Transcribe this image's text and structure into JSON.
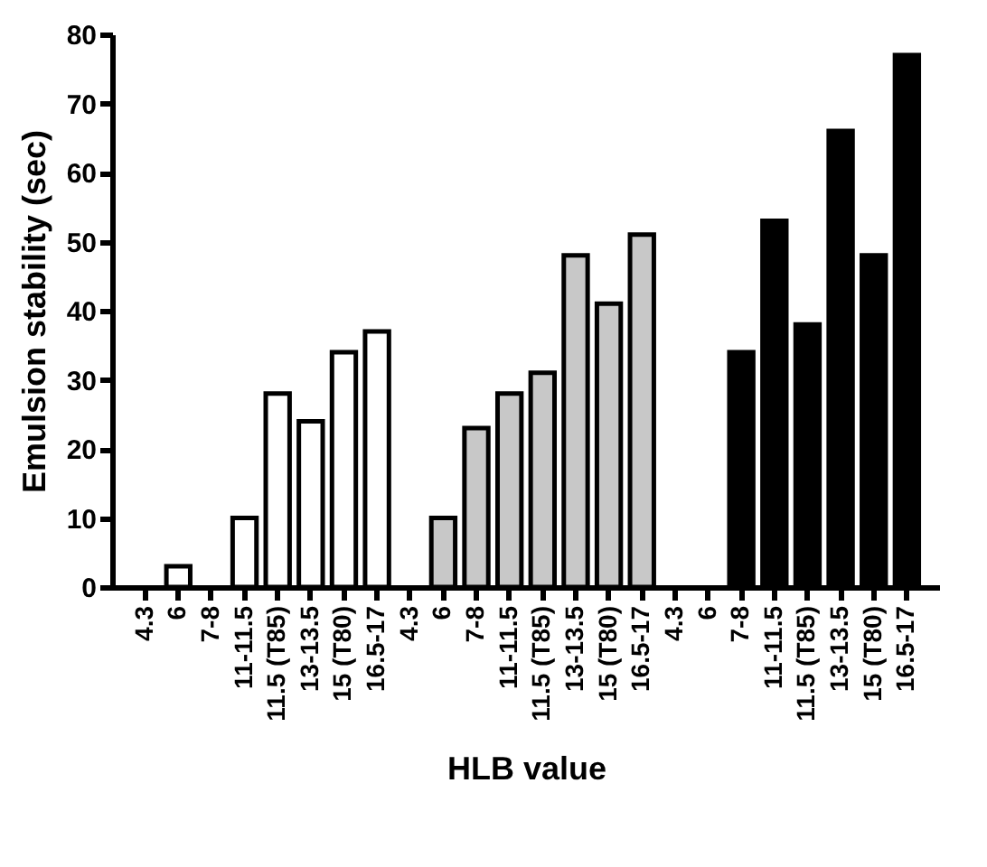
{
  "chart_data": {
    "type": "bar",
    "xlabel": "HLB value",
    "ylabel": "Emulsion stability (sec)",
    "categories": [
      "4.3",
      "6",
      "7-8",
      "11-11.5",
      "11.5 (T85)",
      "13-13.5",
      "15 (T80)",
      "16.5-17",
      "4.3",
      "6",
      "7-8",
      "11-11.5",
      "11.5 (T85)",
      "13-13.5",
      "15 (T80)",
      "16.5-17",
      "4.3",
      "6",
      "7-8",
      "11-11.5",
      "11.5 (T85)",
      "13-13.5",
      "15 (T80)",
      "16.5-17"
    ],
    "values": [
      0,
      3,
      0,
      10,
      28,
      24,
      34,
      37,
      0,
      10,
      23,
      28,
      31,
      48,
      41,
      51,
      0,
      0,
      34,
      53,
      38,
      66,
      48,
      77
    ],
    "colors": [
      "#ffffff",
      "#ffffff",
      "#ffffff",
      "#ffffff",
      "#ffffff",
      "#ffffff",
      "#ffffff",
      "#ffffff",
      "#c8c8c8",
      "#c8c8c8",
      "#c8c8c8",
      "#c8c8c8",
      "#c8c8c8",
      "#c8c8c8",
      "#c8c8c8",
      "#c8c8c8",
      "#000000",
      "#000000",
      "#000000",
      "#000000",
      "#000000",
      "#000000",
      "#000000",
      "#000000"
    ],
    "ylim": [
      0,
      80
    ],
    "yticks": [
      0,
      10,
      20,
      30,
      40,
      50,
      60,
      70,
      80
    ],
    "grid": false,
    "legend": false
  }
}
